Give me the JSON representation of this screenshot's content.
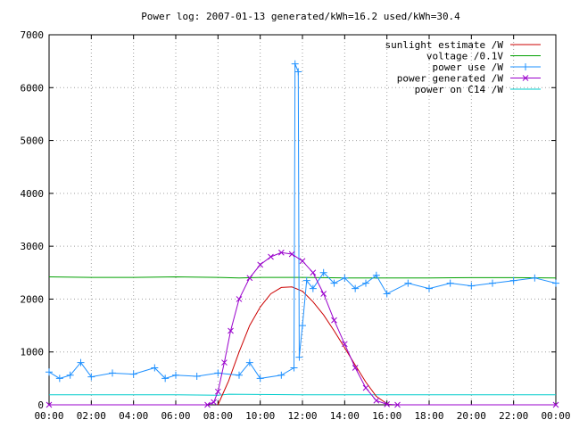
{
  "chart_data": {
    "type": "line",
    "title": "Power log: 2007-01-13 generated/kWh=16.2 used/kWh=30.4",
    "x_ticks": [
      "00:00",
      "02:00",
      "04:00",
      "06:00",
      "08:00",
      "10:00",
      "12:00",
      "14:00",
      "16:00",
      "18:00",
      "20:00",
      "22:00",
      "00:00"
    ],
    "x_range_hours": [
      0,
      24
    ],
    "y_ticks": [
      "0",
      "1000",
      "2000",
      "3000",
      "4000",
      "5000",
      "6000",
      "7000"
    ],
    "ylim": [
      0,
      7000
    ],
    "grid": true,
    "legend_position": "top-right",
    "series": [
      {
        "name": "sunlight estimate /W",
        "color": "#cc0000",
        "style": "line",
        "points": [
          [
            8.0,
            0
          ],
          [
            8.5,
            450
          ],
          [
            9.0,
            1000
          ],
          [
            9.5,
            1500
          ],
          [
            10.0,
            1850
          ],
          [
            10.5,
            2100
          ],
          [
            11.0,
            2220
          ],
          [
            11.5,
            2230
          ],
          [
            12.0,
            2150
          ],
          [
            12.5,
            1950
          ],
          [
            13.0,
            1700
          ],
          [
            13.5,
            1400
          ],
          [
            14.0,
            1080
          ],
          [
            14.5,
            750
          ],
          [
            15.0,
            430
          ],
          [
            15.5,
            160
          ],
          [
            16.0,
            20
          ],
          [
            16.2,
            0
          ]
        ]
      },
      {
        "name": "voltage /0.1V",
        "color": "#00a000",
        "style": "line",
        "points": [
          [
            0,
            2420
          ],
          [
            2,
            2410
          ],
          [
            4,
            2410
          ],
          [
            6,
            2420
          ],
          [
            8,
            2410
          ],
          [
            9,
            2400
          ],
          [
            10,
            2410
          ],
          [
            12,
            2410
          ],
          [
            14,
            2400
          ],
          [
            16,
            2400
          ],
          [
            18,
            2400
          ],
          [
            20,
            2405
          ],
          [
            22,
            2405
          ],
          [
            24,
            2400
          ]
        ]
      },
      {
        "name": "power use /W",
        "color": "#1e90ff",
        "style": "line+plus",
        "points": [
          [
            0,
            620
          ],
          [
            0.5,
            500
          ],
          [
            1,
            560
          ],
          [
            1.5,
            800
          ],
          [
            2,
            530
          ],
          [
            3,
            600
          ],
          [
            4,
            580
          ],
          [
            5,
            700
          ],
          [
            5.5,
            500
          ],
          [
            6,
            560
          ],
          [
            7,
            540
          ],
          [
            8,
            600
          ],
          [
            9,
            560
          ],
          [
            9.5,
            800
          ],
          [
            10,
            500
          ],
          [
            11,
            560
          ],
          [
            11.6,
            700
          ],
          [
            11.65,
            6450
          ],
          [
            11.8,
            6300
          ],
          [
            11.85,
            900
          ],
          [
            12,
            1500
          ],
          [
            12.2,
            2350
          ],
          [
            12.5,
            2200
          ],
          [
            13,
            2500
          ],
          [
            13.5,
            2300
          ],
          [
            14,
            2400
          ],
          [
            14.5,
            2200
          ],
          [
            15,
            2300
          ],
          [
            15.5,
            2450
          ],
          [
            16,
            2100
          ],
          [
            17,
            2300
          ],
          [
            18,
            2200
          ],
          [
            19,
            2300
          ],
          [
            20,
            2250
          ],
          [
            21,
            2300
          ],
          [
            22,
            2350
          ],
          [
            23,
            2400
          ],
          [
            24,
            2300
          ]
        ]
      },
      {
        "name": "power generated /W",
        "color": "#9900cc",
        "style": "line+cross",
        "points": [
          [
            0,
            0
          ],
          [
            7.5,
            0
          ],
          [
            7.8,
            50
          ],
          [
            8.0,
            250
          ],
          [
            8.3,
            800
          ],
          [
            8.6,
            1400
          ],
          [
            9.0,
            2000
          ],
          [
            9.5,
            2400
          ],
          [
            10.0,
            2650
          ],
          [
            10.5,
            2800
          ],
          [
            11.0,
            2880
          ],
          [
            11.5,
            2850
          ],
          [
            12.0,
            2720
          ],
          [
            12.5,
            2500
          ],
          [
            13.0,
            2100
          ],
          [
            13.5,
            1600
          ],
          [
            14.0,
            1150
          ],
          [
            14.5,
            700
          ],
          [
            15.0,
            320
          ],
          [
            15.5,
            80
          ],
          [
            16.0,
            10
          ],
          [
            16.5,
            0
          ],
          [
            24,
            0
          ]
        ]
      },
      {
        "name": "power on C14 /W",
        "color": "#00cccc",
        "style": "line",
        "points": [
          [
            0,
            190
          ],
          [
            6,
            190
          ],
          [
            8,
            180
          ],
          [
            8.5,
            200
          ],
          [
            12,
            190
          ],
          [
            16,
            190
          ],
          [
            20,
            190
          ],
          [
            24,
            190
          ]
        ]
      }
    ]
  }
}
